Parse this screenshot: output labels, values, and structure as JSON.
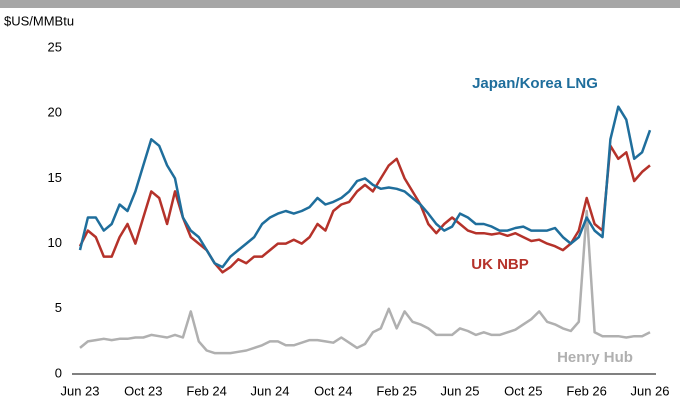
{
  "chart_data": {
    "type": "line",
    "y_label": "$US/MMBtu",
    "categories": [
      "Jun 23",
      null,
      null,
      null,
      null,
      null,
      null,
      null,
      "Oct 23",
      null,
      null,
      null,
      null,
      null,
      null,
      null,
      "Feb 24",
      null,
      null,
      null,
      null,
      null,
      null,
      null,
      "Jun 24",
      null,
      null,
      null,
      null,
      null,
      null,
      null,
      "Oct 24",
      null,
      null,
      null,
      null,
      null,
      null,
      null,
      "Feb 25",
      null,
      null,
      null,
      null,
      null,
      null,
      null,
      "Jun 25",
      null,
      null,
      null,
      null,
      null,
      null,
      null,
      "Oct 25",
      null,
      null,
      null,
      null,
      null,
      null,
      null,
      "Feb 26",
      null,
      null,
      null,
      null,
      null,
      null,
      null,
      "Jun 26"
    ],
    "series": [
      {
        "name": "Japan/Korea LNG",
        "color": "#1f6e9c",
        "values": [
          9.5,
          12,
          12,
          11,
          11.5,
          13,
          12.5,
          14,
          16,
          18,
          17.5,
          16,
          15,
          12,
          11,
          10.5,
          9.5,
          8.5,
          8.2,
          9,
          9.5,
          10,
          10.5,
          11.5,
          12,
          12.3,
          12.5,
          12.3,
          12.5,
          12.8,
          13.5,
          13,
          13.2,
          13.5,
          14,
          14.8,
          15,
          14.5,
          14.2,
          14.3,
          14.2,
          14,
          13.5,
          13,
          12.3,
          11.5,
          11,
          11.3,
          12.3,
          12,
          11.5,
          11.5,
          11.3,
          11,
          11,
          11.2,
          11.3,
          11,
          11,
          11,
          11.2,
          10.5,
          10,
          10.5,
          12,
          11,
          10.5,
          18,
          20.5,
          19.5,
          16.5,
          17,
          18.7
        ]
      },
      {
        "name": "UK NBP",
        "color": "#b5322a",
        "values": [
          9.8,
          11,
          10.5,
          9,
          9,
          10.5,
          11.5,
          10,
          12,
          14,
          13.5,
          11.5,
          14,
          12,
          10.5,
          10,
          9.5,
          8.5,
          7.8,
          8.2,
          8.8,
          8.5,
          9,
          9,
          9.5,
          10,
          10,
          10.3,
          10,
          10.5,
          11.5,
          11,
          12.5,
          13,
          13.2,
          14,
          14.5,
          14,
          15,
          16,
          16.5,
          15,
          14,
          13,
          11.5,
          10.8,
          11.5,
          12,
          11.5,
          11,
          10.8,
          10.8,
          10.7,
          10.8,
          10.6,
          10.8,
          10.5,
          10.2,
          10.3,
          10,
          9.8,
          9.5,
          10,
          11,
          13.5,
          11.5,
          11,
          17.5,
          16.5,
          17,
          14.8,
          15.5,
          16
        ]
      },
      {
        "name": "Henry Hub",
        "color": "#b0b0b0",
        "values": [
          2,
          2.5,
          2.6,
          2.7,
          2.6,
          2.7,
          2.7,
          2.8,
          2.8,
          3,
          2.9,
          2.8,
          3,
          2.8,
          4.8,
          2.5,
          1.8,
          1.6,
          1.6,
          1.6,
          1.7,
          1.8,
          2,
          2.2,
          2.5,
          2.5,
          2.2,
          2.2,
          2.4,
          2.6,
          2.6,
          2.5,
          2.4,
          2.8,
          2.4,
          2,
          2.3,
          3.2,
          3.5,
          5,
          3.5,
          4.8,
          4,
          3.8,
          3.5,
          3,
          3,
          3,
          3.5,
          3.3,
          3,
          3.2,
          3,
          3,
          3.2,
          3.4,
          3.8,
          4.2,
          4.8,
          4,
          3.8,
          3.5,
          3.3,
          4,
          12.5,
          3.2,
          2.9,
          2.9,
          2.9,
          2.8,
          2.9,
          2.9,
          3.2
        ]
      }
    ],
    "ylim": [
      0,
      25
    ],
    "yticks": [
      0,
      5,
      10,
      15,
      20,
      25
    ],
    "grid": false
  }
}
